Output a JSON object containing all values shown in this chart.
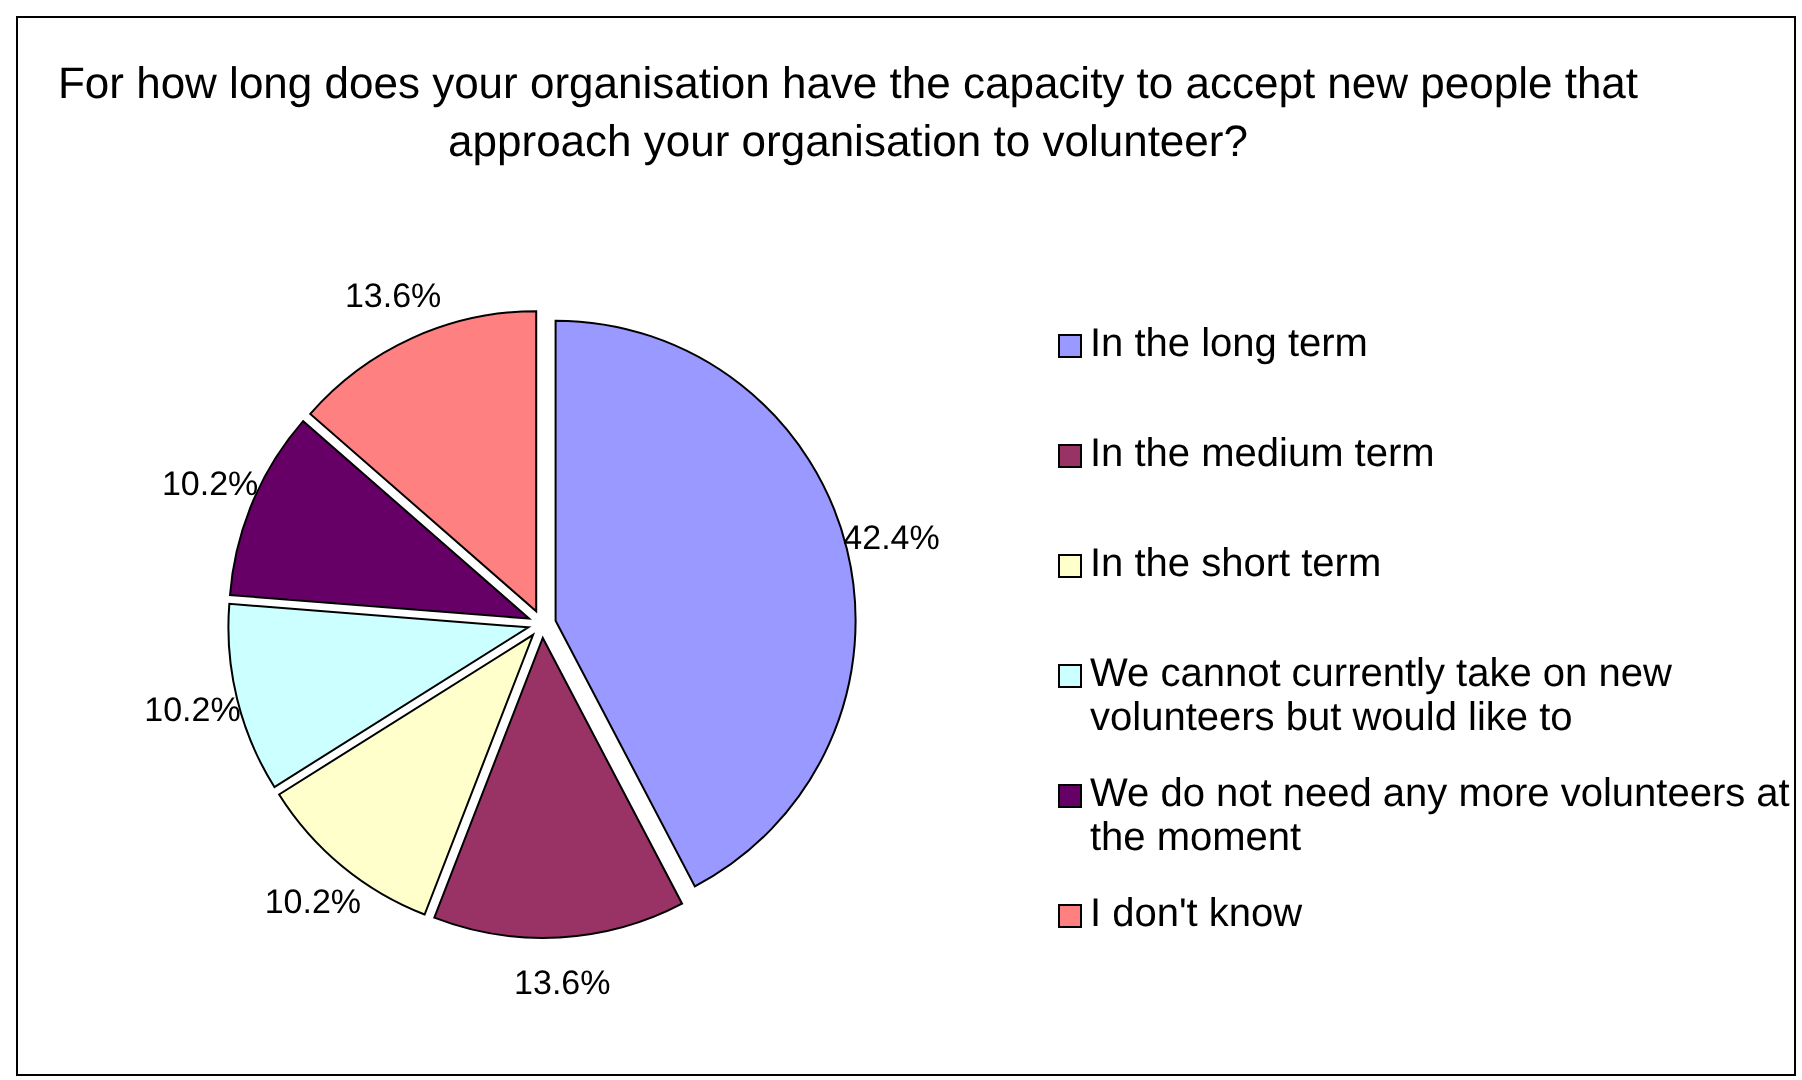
{
  "chart_data": {
    "type": "pie",
    "title": "For how long does your organisation have the capacity to accept new people that approach your organisation to volunteer?",
    "categories": [
      "In the long term",
      "In the medium term",
      "In the short term",
      "We cannot currently take on new volunteers but would like to",
      "We do not need any more volunteers at the moment",
      "I don't know"
    ],
    "values": [
      42.4,
      13.6,
      10.2,
      10.2,
      10.2,
      13.6
    ],
    "value_labels": [
      "42.4%",
      "13.6%",
      "10.2%",
      "10.2%",
      "10.2%",
      "13.6%"
    ],
    "colors": [
      "#9999ff",
      "#993366",
      "#ffffcc",
      "#ccffff",
      "#660066",
      "#ff8080"
    ],
    "legend": "right"
  }
}
